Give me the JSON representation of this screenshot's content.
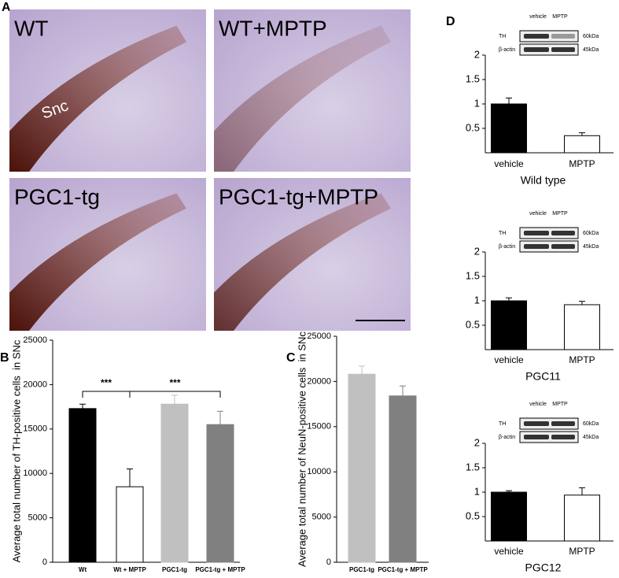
{
  "panel_a": {
    "letter": "A",
    "images": [
      {
        "label": "WT",
        "region": "Snc"
      },
      {
        "label": "WT+MPTP"
      },
      {
        "label": "PGC1-tg"
      },
      {
        "label": "PGC1-tg+MPTP"
      }
    ]
  },
  "chart_data": [
    {
      "type": "bar",
      "panel": "B",
      "y_label": "Average total number of TH-positive cells  in SNc",
      "categories": [
        "Wt",
        "Wt + MPTP",
        "PGC1-tg",
        "PGC1-tg + MPTP"
      ],
      "values": [
        17300,
        8500,
        17800,
        15500
      ],
      "errors": [
        500,
        2000,
        1000,
        1500
      ],
      "colors": [
        "#000000",
        "#ffffff",
        "#c0c0c0",
        "#808080"
      ],
      "ylim": [
        0,
        25000
      ],
      "yticks": [
        0,
        5000,
        10000,
        15000,
        20000,
        25000
      ],
      "annotations": [
        "***",
        "***"
      ]
    },
    {
      "type": "bar",
      "panel": "C",
      "y_label": "Average total number of NeuN-positive cells  in SNc",
      "categories": [
        "PGC1-tg",
        "PGC1-tg + MPTP"
      ],
      "values": [
        20800,
        18400
      ],
      "errors": [
        900,
        1100
      ],
      "colors": [
        "#c0c0c0",
        "#808080"
      ],
      "ylim": [
        0,
        25000
      ],
      "yticks": [
        0,
        5000,
        10000,
        15000,
        20000,
        25000
      ]
    },
    {
      "type": "bar",
      "panel": "D",
      "x_label": "Wild type",
      "blot": {
        "lanes": [
          "vehicle",
          "MPTP"
        ],
        "rows": [
          "TH",
          "β-actin"
        ],
        "sizes": [
          "60kDa",
          "45kDa"
        ]
      },
      "categories": [
        "vehicle",
        "MPTP"
      ],
      "values": [
        1,
        0.35
      ],
      "errors": [
        0.12,
        0.06
      ],
      "colors": [
        "#000000",
        "#ffffff"
      ],
      "ylim": [
        0,
        2
      ],
      "yticks": [
        0.5,
        1,
        1.5,
        2
      ]
    },
    {
      "type": "bar",
      "x_label": "PGC11",
      "blot": {
        "lanes": [
          "vehicle",
          "MPTP"
        ],
        "rows": [
          "TH",
          "β-actin"
        ],
        "sizes": [
          "60kDa",
          "45kDa"
        ]
      },
      "categories": [
        "vehicle",
        "MPTP"
      ],
      "values": [
        1,
        0.92
      ],
      "errors": [
        0.06,
        0.07
      ],
      "colors": [
        "#000000",
        "#ffffff"
      ],
      "ylim": [
        0,
        2
      ],
      "yticks": [
        0.5,
        1,
        1.5,
        2
      ]
    },
    {
      "type": "bar",
      "x_label": "PGC12",
      "blot": {
        "lanes": [
          "vehicle",
          "MPTP"
        ],
        "rows": [
          "TH",
          "β-actin"
        ],
        "sizes": [
          "60kDa",
          "45kDa"
        ]
      },
      "categories": [
        "vehicle",
        "MPTP"
      ],
      "values": [
        1,
        0.94
      ],
      "errors": [
        0.03,
        0.15
      ],
      "colors": [
        "#000000",
        "#ffffff"
      ],
      "ylim": [
        0,
        2
      ],
      "yticks": [
        0.5,
        1,
        1.5,
        2
      ]
    }
  ]
}
